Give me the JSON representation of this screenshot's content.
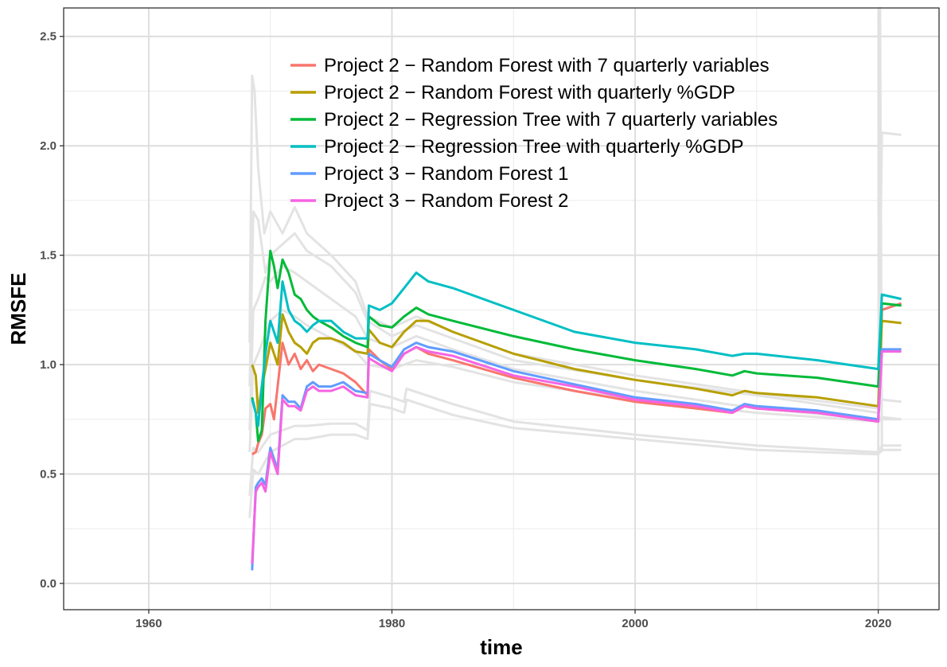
{
  "chart_data": {
    "type": "line",
    "title": "",
    "xlabel": "time",
    "ylabel": "RMSFE",
    "xlim": [
      1953,
      2025
    ],
    "ylim": [
      -0.12,
      2.63
    ],
    "xticks": [
      1960,
      1980,
      2000,
      2020
    ],
    "yticks": [
      0.0,
      0.5,
      1.0,
      1.5,
      2.0,
      2.5
    ],
    "ytick_labels": [
      "0.0",
      "0.5",
      "1.0",
      "1.5",
      "2.0",
      "2.5"
    ],
    "grid": true,
    "legend_position": "top-center",
    "background_series_color": "#e3e3e3",
    "background_series": [
      {
        "x": [
          1968.3,
          1968.5,
          1968.7,
          1969.0,
          1969.5,
          1970.0,
          1971.0,
          1972.0,
          1973.0,
          1975.0,
          1977.0,
          1978.0,
          1980.0,
          1982.0,
          1985.0,
          1990.0,
          2000.0,
          2010.0,
          2020.0,
          2020.3,
          2021.9
        ],
        "y": [
          1.1,
          2.32,
          2.25,
          1.9,
          1.6,
          1.7,
          1.6,
          1.72,
          1.6,
          1.5,
          1.38,
          1.22,
          1.17,
          1.22,
          1.15,
          1.05,
          0.95,
          0.87,
          0.8,
          2.06,
          2.05
        ]
      },
      {
        "x": [
          1968.3,
          1968.6,
          1969.0,
          1969.6,
          1970.0,
          1971.0,
          1972.0,
          1973.0,
          1975.0,
          1977.0,
          1978.0,
          1980.0,
          1982.0,
          1985.0,
          1990.0,
          2000.0,
          2010.0,
          2020.0,
          2020.3,
          2021.9
        ],
        "y": [
          0.9,
          1.7,
          1.66,
          1.42,
          1.5,
          1.55,
          1.6,
          1.52,
          1.45,
          1.33,
          1.2,
          1.13,
          1.18,
          1.12,
          1.02,
          0.93,
          0.86,
          0.78,
          0.84,
          0.83
        ]
      },
      {
        "x": [
          1968.3,
          1968.6,
          1969.0,
          1969.6,
          1970.0,
          1971.0,
          1972.0,
          1973.0,
          1975.0,
          1977.0,
          1978.0,
          1980.0,
          1982.0,
          1985.0,
          1990.0,
          2000.0,
          2010.0,
          2020.0,
          2020.3,
          2021.9
        ],
        "y": [
          0.7,
          1.25,
          1.3,
          1.4,
          1.38,
          1.45,
          1.42,
          1.38,
          1.3,
          1.22,
          1.12,
          1.08,
          1.13,
          1.07,
          0.98,
          0.88,
          0.8,
          0.75,
          0.76,
          0.75
        ]
      },
      {
        "x": [
          1968.3,
          1968.6,
          1969.0,
          1970.0,
          1971.0,
          1972.0,
          1973.0,
          1975.0,
          1977.0,
          1978.0,
          1980.0,
          1982.0,
          1985.0,
          1990.0,
          2000.0,
          2010.0,
          2020.0,
          2020.3,
          2021.9
        ],
        "y": [
          0.6,
          1.0,
          1.05,
          1.2,
          1.25,
          1.22,
          1.18,
          1.12,
          1.06,
          1.0,
          0.98,
          1.02,
          0.99,
          0.92,
          0.84,
          0.78,
          0.74,
          0.75,
          0.75
        ]
      },
      {
        "x": [
          1968.3,
          1968.6,
          1969.0,
          1970.0,
          1971.0,
          1972.0,
          1973.0,
          1975.0,
          1977.0,
          1978.0,
          1978.2,
          1980.0,
          1981.0,
          1981.2,
          1985.0,
          1990.0,
          2000.0,
          2010.0,
          2020.0,
          2020.3,
          2021.9
        ],
        "y": [
          0.4,
          0.62,
          0.6,
          0.68,
          0.7,
          0.72,
          0.72,
          0.73,
          0.73,
          0.7,
          0.88,
          0.85,
          0.83,
          0.89,
          0.82,
          0.74,
          0.68,
          0.63,
          0.6,
          0.63,
          0.63
        ]
      },
      {
        "x": [
          1968.3,
          1968.6,
          1969.0,
          1970.0,
          1971.0,
          1972.0,
          1973.0,
          1975.0,
          1977.0,
          1978.0,
          1978.2,
          1980.0,
          1981.0,
          1981.2,
          1985.0,
          1990.0,
          2000.0,
          2010.0,
          2020.0,
          2020.3,
          2021.9
        ],
        "y": [
          0.3,
          0.52,
          0.5,
          0.6,
          0.63,
          0.66,
          0.66,
          0.68,
          0.68,
          0.66,
          0.82,
          0.8,
          0.78,
          0.84,
          0.77,
          0.71,
          0.66,
          0.61,
          0.59,
          0.61,
          0.61
        ]
      },
      {
        "x": [
          2020.0,
          2020.15,
          2020.3
        ],
        "y": [
          0.6,
          2.63,
          0.6
        ]
      }
    ],
    "series": [
      {
        "name": "Project 2 − Random Forest with 7 quarterly variables",
        "color": "#F8766D",
        "x": [
          1968.5,
          1968.8,
          1969.0,
          1969.3,
          1969.6,
          1970.0,
          1970.3,
          1970.6,
          1971.0,
          1971.5,
          1972.0,
          1972.5,
          1973.0,
          1973.5,
          1974.0,
          1975.0,
          1976.0,
          1977.0,
          1978.0,
          1978.1,
          1979.0,
          1980.0,
          1981.0,
          1982.0,
          1983.0,
          1985.0,
          1990.0,
          1995.0,
          2000.0,
          2005.0,
          2008.0,
          2009.0,
          2010.0,
          2015.0,
          2020.0,
          2020.3,
          2021.9
        ],
        "y": [
          0.59,
          0.6,
          0.64,
          0.68,
          0.8,
          0.82,
          0.75,
          0.9,
          1.1,
          1.0,
          1.05,
          0.98,
          1.02,
          0.97,
          1.0,
          0.98,
          0.96,
          0.92,
          0.86,
          1.07,
          1.02,
          0.98,
          1.05,
          1.08,
          1.05,
          1.02,
          0.94,
          0.88,
          0.83,
          0.8,
          0.78,
          0.81,
          0.8,
          0.78,
          0.74,
          1.25,
          1.28
        ]
      },
      {
        "name": "Project 2 − Random Forest with quarterly %GDP",
        "color": "#B79F00",
        "x": [
          1968.5,
          1968.8,
          1969.0,
          1969.3,
          1969.6,
          1970.0,
          1970.3,
          1970.6,
          1971.0,
          1971.5,
          1972.0,
          1972.5,
          1973.0,
          1973.5,
          1974.0,
          1975.0,
          1976.0,
          1977.0,
          1978.0,
          1978.1,
          1979.0,
          1980.0,
          1981.0,
          1982.0,
          1983.0,
          1985.0,
          1990.0,
          1995.0,
          2000.0,
          2005.0,
          2008.0,
          2009.0,
          2010.0,
          2015.0,
          2020.0,
          2020.3,
          2021.9
        ],
        "y": [
          1.0,
          0.95,
          0.78,
          0.9,
          0.98,
          1.1,
          1.05,
          1.0,
          1.23,
          1.15,
          1.1,
          1.08,
          1.05,
          1.1,
          1.12,
          1.12,
          1.1,
          1.06,
          1.05,
          1.16,
          1.1,
          1.08,
          1.15,
          1.2,
          1.2,
          1.15,
          1.05,
          0.98,
          0.93,
          0.89,
          0.86,
          0.88,
          0.87,
          0.85,
          0.81,
          1.2,
          1.19
        ]
      },
      {
        "name": "Project 2 − Regression Tree with 7 quarterly variables",
        "color": "#00BA38",
        "x": [
          1968.5,
          1968.8,
          1969.0,
          1969.3,
          1969.6,
          1970.0,
          1970.3,
          1970.6,
          1971.0,
          1971.5,
          1972.0,
          1972.5,
          1973.0,
          1973.5,
          1974.0,
          1975.0,
          1976.0,
          1977.0,
          1978.0,
          1978.1,
          1979.0,
          1980.0,
          1981.0,
          1982.0,
          1983.0,
          1985.0,
          1990.0,
          1995.0,
          2000.0,
          2005.0,
          2008.0,
          2009.0,
          2010.0,
          2015.0,
          2020.0,
          2020.3,
          2021.9
        ],
        "y": [
          0.85,
          0.78,
          0.65,
          0.7,
          1.2,
          1.52,
          1.45,
          1.35,
          1.48,
          1.42,
          1.32,
          1.3,
          1.25,
          1.22,
          1.2,
          1.17,
          1.13,
          1.1,
          1.08,
          1.22,
          1.18,
          1.17,
          1.22,
          1.26,
          1.23,
          1.2,
          1.13,
          1.07,
          1.02,
          0.98,
          0.95,
          0.97,
          0.96,
          0.94,
          0.9,
          1.28,
          1.27
        ]
      },
      {
        "name": "Project 2 − Regression Tree with quarterly %GDP",
        "color": "#00BFC4",
        "x": [
          1968.5,
          1968.8,
          1969.0,
          1969.3,
          1969.6,
          1970.0,
          1970.3,
          1970.6,
          1971.0,
          1971.5,
          1972.0,
          1972.5,
          1973.0,
          1973.5,
          1974.0,
          1975.0,
          1976.0,
          1977.0,
          1978.0,
          1978.1,
          1979.0,
          1980.0,
          1981.0,
          1982.0,
          1983.0,
          1985.0,
          1990.0,
          1995.0,
          2000.0,
          2005.0,
          2008.0,
          2009.0,
          2010.0,
          2015.0,
          2020.0,
          2020.3,
          2021.9
        ],
        "y": [
          0.84,
          0.78,
          0.72,
          0.9,
          1.05,
          1.2,
          1.15,
          1.1,
          1.38,
          1.25,
          1.2,
          1.18,
          1.15,
          1.18,
          1.2,
          1.2,
          1.15,
          1.12,
          1.12,
          1.27,
          1.25,
          1.28,
          1.35,
          1.42,
          1.38,
          1.35,
          1.25,
          1.15,
          1.1,
          1.07,
          1.04,
          1.05,
          1.05,
          1.02,
          0.98,
          1.32,
          1.3
        ]
      },
      {
        "name": "Project 3 − Random Forest 1",
        "color": "#619CFF",
        "x": [
          1968.5,
          1968.8,
          1969.0,
          1969.3,
          1969.6,
          1970.0,
          1970.3,
          1970.6,
          1971.0,
          1971.5,
          1972.0,
          1972.5,
          1973.0,
          1973.5,
          1974.0,
          1975.0,
          1976.0,
          1977.0,
          1978.0,
          1978.1,
          1979.0,
          1980.0,
          1981.0,
          1982.0,
          1983.0,
          1985.0,
          1990.0,
          1995.0,
          2000.0,
          2005.0,
          2008.0,
          2009.0,
          2010.0,
          2015.0,
          2020.0,
          2020.3,
          2021.9
        ],
        "y": [
          0.06,
          0.44,
          0.46,
          0.48,
          0.45,
          0.62,
          0.57,
          0.52,
          0.86,
          0.83,
          0.83,
          0.8,
          0.9,
          0.92,
          0.9,
          0.9,
          0.92,
          0.88,
          0.87,
          1.05,
          1.02,
          0.99,
          1.07,
          1.1,
          1.08,
          1.06,
          0.97,
          0.91,
          0.85,
          0.82,
          0.79,
          0.82,
          0.81,
          0.79,
          0.75,
          1.07,
          1.07
        ]
      },
      {
        "name": "Project 3 − Random Forest 2",
        "color": "#F564E3",
        "x": [
          1968.5,
          1968.8,
          1969.0,
          1969.3,
          1969.6,
          1970.0,
          1970.3,
          1970.6,
          1971.0,
          1971.5,
          1972.0,
          1972.5,
          1973.0,
          1973.5,
          1974.0,
          1975.0,
          1976.0,
          1977.0,
          1978.0,
          1978.1,
          1979.0,
          1980.0,
          1981.0,
          1982.0,
          1983.0,
          1985.0,
          1990.0,
          1995.0,
          2000.0,
          2005.0,
          2008.0,
          2009.0,
          2010.0,
          2015.0,
          2020.0,
          2020.3,
          2021.9
        ],
        "y": [
          0.09,
          0.42,
          0.44,
          0.46,
          0.42,
          0.6,
          0.55,
          0.5,
          0.84,
          0.81,
          0.81,
          0.79,
          0.88,
          0.9,
          0.88,
          0.88,
          0.9,
          0.86,
          0.85,
          1.03,
          1.0,
          0.97,
          1.05,
          1.08,
          1.06,
          1.04,
          0.95,
          0.9,
          0.84,
          0.81,
          0.78,
          0.81,
          0.8,
          0.78,
          0.74,
          1.06,
          1.06
        ]
      }
    ]
  }
}
